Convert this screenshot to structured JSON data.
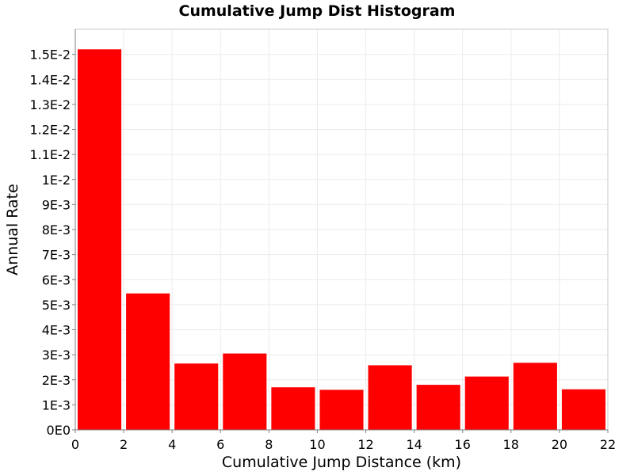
{
  "chart_data": {
    "type": "bar",
    "title": "Cumulative Jump Dist Histogram",
    "xlabel": "Cumulative Jump Distance (km)",
    "ylabel": "Annual Rate",
    "xlim": [
      0,
      22
    ],
    "ylim": [
      0,
      0.016
    ],
    "grid": true,
    "legend": "none",
    "bar_color": "#ff0000",
    "bin_width": 2,
    "bins": [
      {
        "x0": 0,
        "x1": 2,
        "value": 0.0152
      },
      {
        "x0": 2,
        "x1": 4,
        "value": 0.00545
      },
      {
        "x0": 4,
        "x1": 6,
        "value": 0.00265
      },
      {
        "x0": 6,
        "x1": 8,
        "value": 0.00305
      },
      {
        "x0": 8,
        "x1": 10,
        "value": 0.0017
      },
      {
        "x0": 10,
        "x1": 12,
        "value": 0.0016
      },
      {
        "x0": 12,
        "x1": 14,
        "value": 0.00258
      },
      {
        "x0": 14,
        "x1": 16,
        "value": 0.0018
      },
      {
        "x0": 16,
        "x1": 18,
        "value": 0.00213
      },
      {
        "x0": 18,
        "x1": 20,
        "value": 0.00268
      },
      {
        "x0": 20,
        "x1": 22,
        "value": 0.00162
      }
    ],
    "x_ticks": [
      {
        "value": 0,
        "label": "0"
      },
      {
        "value": 2,
        "label": "2"
      },
      {
        "value": 4,
        "label": "4"
      },
      {
        "value": 6,
        "label": "6"
      },
      {
        "value": 8,
        "label": "8"
      },
      {
        "value": 10,
        "label": "10"
      },
      {
        "value": 12,
        "label": "12"
      },
      {
        "value": 14,
        "label": "14"
      },
      {
        "value": 16,
        "label": "16"
      },
      {
        "value": 18,
        "label": "18"
      },
      {
        "value": 20,
        "label": "20"
      },
      {
        "value": 22,
        "label": "22"
      }
    ],
    "y_ticks": [
      {
        "value": 0,
        "label": "0E0"
      },
      {
        "value": 0.001,
        "label": "1E-3"
      },
      {
        "value": 0.002,
        "label": "2E-3"
      },
      {
        "value": 0.003,
        "label": "3E-3"
      },
      {
        "value": 0.004,
        "label": "4E-3"
      },
      {
        "value": 0.005,
        "label": "5E-3"
      },
      {
        "value": 0.006,
        "label": "6E-3"
      },
      {
        "value": 0.007,
        "label": "7E-3"
      },
      {
        "value": 0.008,
        "label": "8E-3"
      },
      {
        "value": 0.009,
        "label": "9E-3"
      },
      {
        "value": 0.01,
        "label": "1E-2"
      },
      {
        "value": 0.011,
        "label": "1.1E-2"
      },
      {
        "value": 0.012,
        "label": "1.2E-2"
      },
      {
        "value": 0.013,
        "label": "1.3E-2"
      },
      {
        "value": 0.014,
        "label": "1.4E-2"
      },
      {
        "value": 0.015,
        "label": "1.5E-2"
      }
    ]
  }
}
